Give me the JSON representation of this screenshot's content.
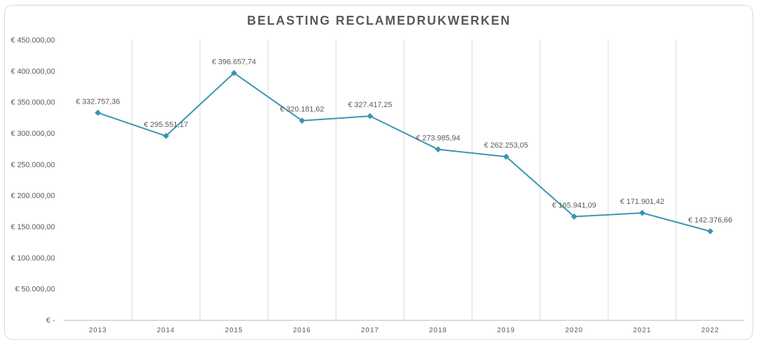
{
  "chart_data": {
    "type": "line",
    "title": "BELASTING RECLAMEDRUKWERKEN",
    "xlabel": "",
    "ylabel": "",
    "categories": [
      "2013",
      "2014",
      "2015",
      "2016",
      "2017",
      "2018",
      "2019",
      "2020",
      "2021",
      "2022"
    ],
    "series": [
      {
        "values": [
          332757.36,
          295551.17,
          396657.74,
          320181.62,
          327417.25,
          273985.94,
          262253.05,
          165941.09,
          171901.42,
          142376.66
        ],
        "labels": [
          "€ 332.757,36",
          "€ 295.551,17",
          "€ 396.657,74",
          "€ 320.181,62",
          "€ 327.417,25",
          "€ 273.985,94",
          "€ 262.253,05",
          "€ 165.941,09",
          "€ 171.901,42",
          "€ 142.376,66"
        ],
        "color": "#3a93b3",
        "marker": "diamond"
      }
    ],
    "ylim": [
      0,
      450000
    ],
    "yticks": [
      0,
      50000,
      100000,
      150000,
      200000,
      250000,
      300000,
      350000,
      400000,
      450000
    ],
    "ytick_labels": [
      "€ -",
      "€ 50.000,00",
      "€ 100.000,00",
      "€ 150.000,00",
      "€ 200.000,00",
      "€ 250.000,00",
      "€ 300.000,00",
      "€ 350.000,00",
      "€ 400.000,00",
      "€ 450.000,00"
    ],
    "grid": {
      "vertical": true,
      "horizontal": false
    },
    "gridline_color": "#d9d9d9",
    "legend": "none"
  }
}
